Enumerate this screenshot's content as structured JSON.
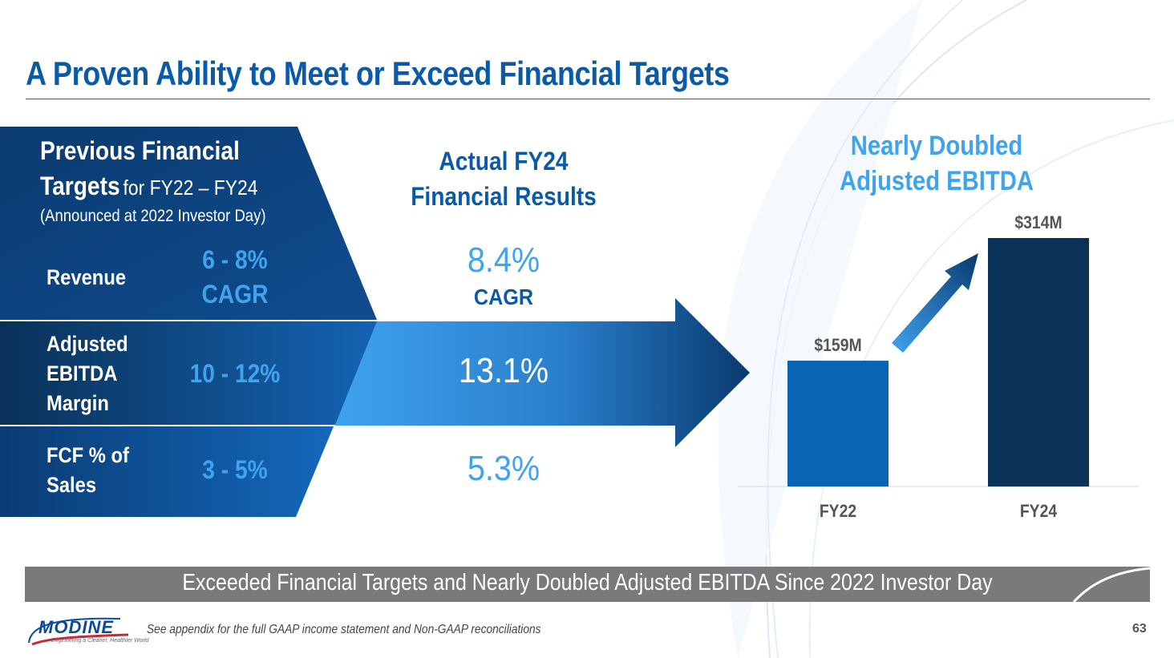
{
  "title": "A Proven Ability to Meet or Exceed Financial Targets",
  "previous_targets": {
    "heading_bold": "Previous Financial",
    "heading_bold_2": "Targets",
    "heading_regular": "for FY22 – FY24",
    "subheading": "(Announced at 2022 Investor Day)",
    "rows": [
      {
        "label_lines": [
          "Revenue"
        ],
        "value_lines": [
          "6 - 8%",
          "CAGR"
        ]
      },
      {
        "label_lines": [
          "Adjusted",
          "EBITDA",
          "Margin"
        ],
        "value_lines": [
          "10 - 12%"
        ]
      },
      {
        "label_lines": [
          "FCF % of",
          "Sales"
        ],
        "value_lines": [
          "3 - 5%"
        ]
      }
    ]
  },
  "actual_results": {
    "heading_lines": [
      "Actual FY24",
      "Financial Results"
    ],
    "revenue": {
      "value": "8.4%",
      "unit": "CAGR"
    },
    "ebitda_margin": "13.1%",
    "fcf": "5.3%"
  },
  "chart_data": {
    "type": "bar",
    "title": "Nearly Doubled Adjusted EBITDA",
    "title_lines": [
      "Nearly Doubled",
      "Adjusted EBITDA"
    ],
    "categories": [
      "FY22",
      "FY24"
    ],
    "values": [
      159,
      314
    ],
    "value_labels": [
      "$159M",
      "$314M"
    ],
    "unit": "$M",
    "colors": [
      "#0a64b4",
      "#0a3158"
    ],
    "ylim": [
      0,
      314
    ],
    "grid": false,
    "annotation": "up-arrow-between-bars"
  },
  "bottom_banner": "Exceeded Financial Targets and Nearly Doubled Adjusted EBITDA Since 2022 Investor Day",
  "footnote": "See appendix for the full GAAP income statement and Non-GAAP reconciliations",
  "page_number": "63",
  "logo": {
    "name": "MODINE",
    "tagline": "Engineering a Cleaner, Healthier World"
  },
  "colors": {
    "brand_blue": "#0a5aa8",
    "accent_blue": "#3fa3ee",
    "navy": "#0a3158",
    "rule_red": "#c8283a",
    "banner_gray": "#7a7a7a"
  }
}
